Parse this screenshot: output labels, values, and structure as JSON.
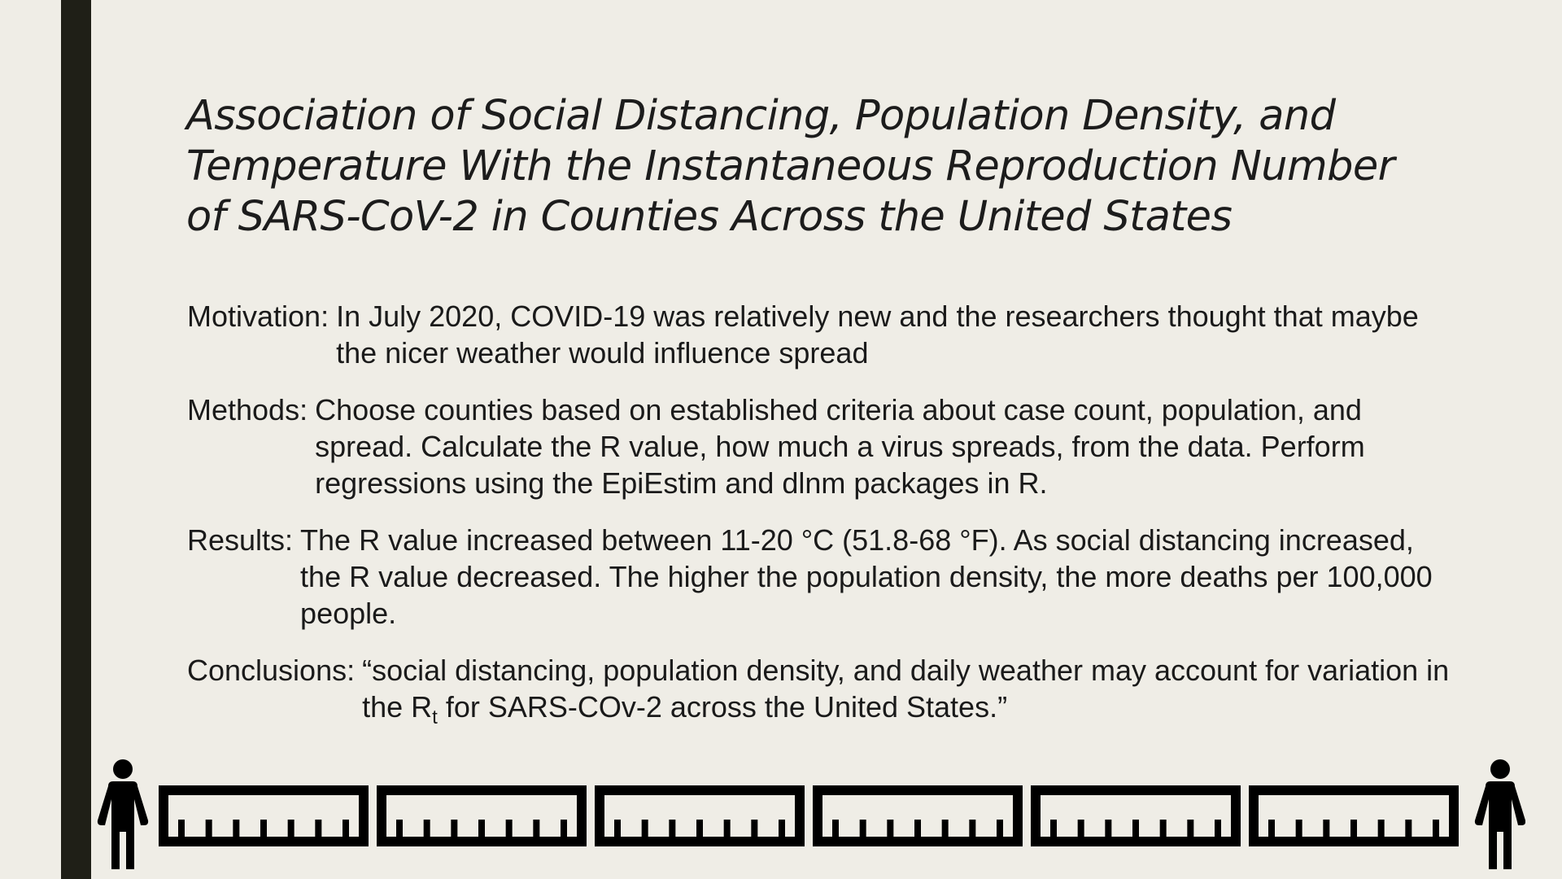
{
  "slide": {
    "colors": {
      "background": "#efede6",
      "accent_bar": "#1f1f17",
      "text": "#1a1a1a",
      "icons": "#000000"
    },
    "title": "Association of Social Distancing, Population Density, and Temperature With the Instantaneous Reproduction Number of SARS-CoV-2 in Counties Across the United States",
    "sections": [
      {
        "label": "Motivation:",
        "text": "In July 2020, COVID-19 was relatively new and the researchers thought that maybe the nicer weather would influence spread"
      },
      {
        "label": "Methods:",
        "text": "Choose counties based on established criteria about case count, population, and spread. Calculate the R value, how much a virus spreads, from the data. Perform regressions using the EpiEstim and dlnm packages in R."
      },
      {
        "label": "Results:",
        "text": "The R value increased between 11-20 °C (51.8-68 °F). As social distancing increased, the R value decreased. The higher the population density, the more deaths per 100,000 people."
      },
      {
        "label": "Conclusions:",
        "text_before": "“social distancing, population density, and daily weather may account for variation in the R",
        "subscript": "t",
        "text_after": " for SARS-COv-2 across the United States.”"
      }
    ],
    "decoration": {
      "left_icon": "person-icon",
      "right_icon": "person-icon",
      "ruler_icon": "ruler-icon",
      "ruler_count": 6
    }
  }
}
